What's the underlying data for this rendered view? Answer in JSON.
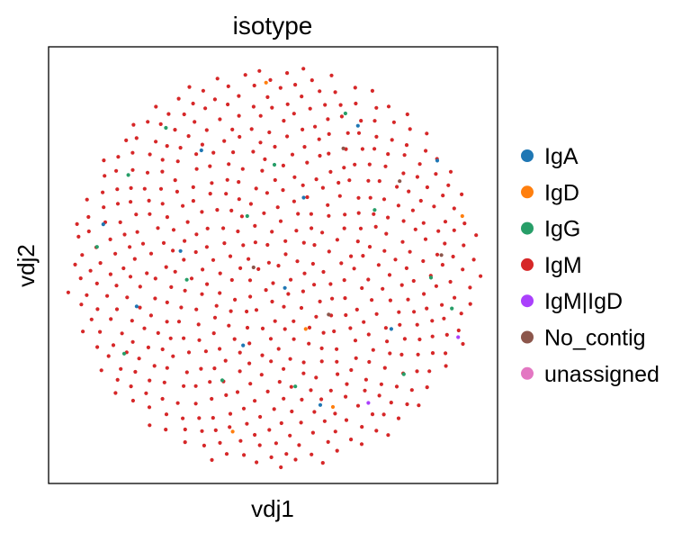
{
  "chart_data": {
    "type": "scatter",
    "title": "isotype",
    "xlabel": "vdj1",
    "ylabel": "vdj2",
    "grid": false,
    "ticks": false,
    "legend_position": "right",
    "background": "#ffffff",
    "legend": [
      {
        "name": "IgA",
        "color": "#1f77b4"
      },
      {
        "name": "IgD",
        "color": "#ff7f0e"
      },
      {
        "name": "IgG",
        "color": "#279e68"
      },
      {
        "name": "IgM",
        "color": "#d62728"
      },
      {
        "name": "IgM|IgD",
        "color": "#aa40fc"
      },
      {
        "name": "No_contig",
        "color": "#8c564b"
      },
      {
        "name": "unassigned",
        "color": "#e377c2"
      }
    ],
    "layout": "circular cloud of points",
    "approx_point_count": 560,
    "highlighted_points": [
      {
        "category": "IgA",
        "x": 0.4,
        "y": 0.69
      },
      {
        "category": "IgA",
        "x": 0.14,
        "y": 0.34
      },
      {
        "category": "IgA",
        "x": -0.82,
        "y": 0.21
      },
      {
        "category": "IgA",
        "x": -0.66,
        "y": -0.19
      },
      {
        "category": "IgA",
        "x": 0.56,
        "y": -0.3
      },
      {
        "category": "IgA",
        "x": -0.15,
        "y": -0.38
      },
      {
        "category": "IgA",
        "x": 0.22,
        "y": -0.67
      },
      {
        "category": "IgA",
        "x": 0.78,
        "y": 0.52
      },
      {
        "category": "IgA",
        "x": -0.35,
        "y": 0.57
      },
      {
        "category": "IgA",
        "x": 0.05,
        "y": -0.1
      },
      {
        "category": "IgA",
        "x": -0.45,
        "y": 0.08
      },
      {
        "category": "IgD",
        "x": -0.04,
        "y": 0.9
      },
      {
        "category": "IgD",
        "x": 0.9,
        "y": 0.25
      },
      {
        "category": "IgD",
        "x": 0.15,
        "y": -0.3
      },
      {
        "category": "IgD",
        "x": 0.28,
        "y": -0.68
      },
      {
        "category": "IgD",
        "x": -0.2,
        "y": -0.8
      },
      {
        "category": "IgG",
        "x": -0.85,
        "y": 0.1
      },
      {
        "category": "IgG",
        "x": -0.52,
        "y": 0.68
      },
      {
        "category": "IgG",
        "x": 0.48,
        "y": 0.28
      },
      {
        "category": "IgG",
        "x": 0.75,
        "y": -0.05
      },
      {
        "category": "IgG",
        "x": -0.72,
        "y": -0.42
      },
      {
        "category": "IgG",
        "x": -0.13,
        "y": 0.25
      },
      {
        "category": "IgG",
        "x": 0.62,
        "y": -0.52
      },
      {
        "category": "IgG",
        "x": -0.42,
        "y": -0.06
      },
      {
        "category": "IgG",
        "x": 0.1,
        "y": -0.58
      },
      {
        "category": "IgG",
        "x": 0.34,
        "y": 0.75
      },
      {
        "category": "IgG",
        "x": -0.7,
        "y": 0.45
      },
      {
        "category": "IgG",
        "x": 0.85,
        "y": -0.2
      },
      {
        "category": "IgG",
        "x": 0.0,
        "y": 0.5
      },
      {
        "category": "IgG",
        "x": -0.25,
        "y": -0.55
      },
      {
        "category": "IgM|IgD",
        "x": 0.88,
        "y": -0.34
      },
      {
        "category": "IgM|IgD",
        "x": 0.45,
        "y": -0.66
      },
      {
        "category": "No_contig",
        "x": 0.33,
        "y": 0.58
      },
      {
        "category": "No_contig",
        "x": 0.6,
        "y": 0.42
      },
      {
        "category": "No_contig",
        "x": 0.8,
        "y": 0.06
      },
      {
        "category": "No_contig",
        "x": -0.1,
        "y": 0.0
      },
      {
        "category": "No_contig",
        "x": 0.26,
        "y": -0.23
      }
    ]
  }
}
